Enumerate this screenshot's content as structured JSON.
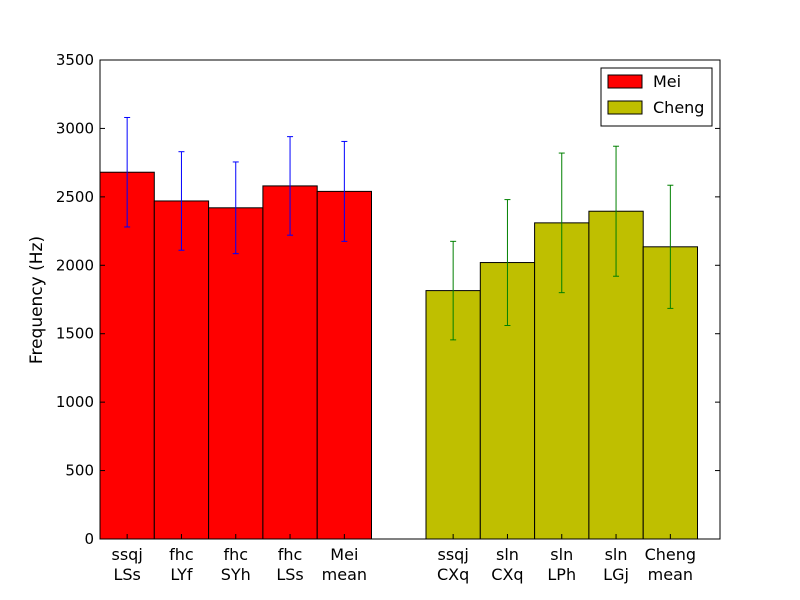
{
  "chart_data": {
    "type": "bar",
    "title": "",
    "xlabel": "",
    "ylabel": "Frequency (Hz)",
    "ylim": [
      0,
      3500
    ],
    "yticks": [
      0,
      500,
      1000,
      1500,
      2000,
      2500,
      3000,
      3500
    ],
    "grid": false,
    "legend_position": "top-right",
    "series": [
      {
        "name": "Mei",
        "color": "#ff0000",
        "error_color": "#0000ff",
        "categories": [
          [
            "ssqj",
            "LSs"
          ],
          [
            "fhc",
            "LYf"
          ],
          [
            "fhc",
            "SYh"
          ],
          [
            "fhc",
            "LSs"
          ],
          [
            "Mei",
            "mean"
          ]
        ],
        "values": [
          2680,
          2470,
          2420,
          2580,
          2540
        ],
        "errors": [
          400,
          360,
          335,
          360,
          365
        ]
      },
      {
        "name": "Cheng",
        "color": "#bfbf00",
        "error_color": "#008000",
        "categories": [
          [
            "ssqj",
            "CXq"
          ],
          [
            "sln",
            "CXq"
          ],
          [
            "sln",
            "LPh"
          ],
          [
            "sln",
            "LGj"
          ],
          [
            "Cheng",
            "mean"
          ]
        ],
        "values": [
          1815,
          2020,
          2310,
          2395,
          2135
        ],
        "errors": [
          360,
          460,
          510,
          475,
          450
        ]
      }
    ]
  }
}
